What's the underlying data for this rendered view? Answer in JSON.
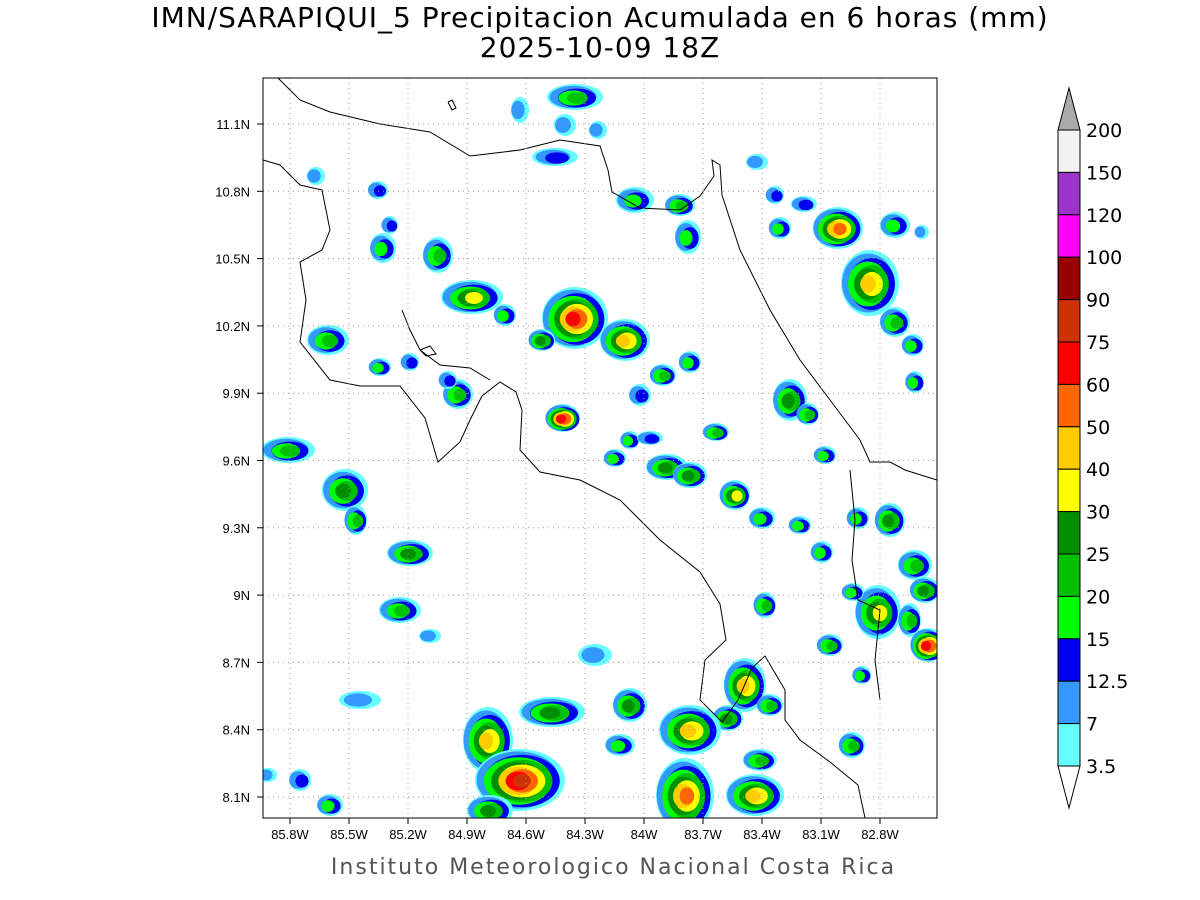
{
  "title": "IMN/SARAPIQUI_5 Precipitacion Acumulada en 6 horas (mm)",
  "subtitle": "2025-10-09 18Z",
  "credit": "Instituto Meteorologico Nacional Costa Rica",
  "map": {
    "lat_ticks": [
      "11.1N",
      "10.8N",
      "10.5N",
      "10.2N",
      "9.9N",
      "9.6N",
      "9.3N",
      "9N",
      "8.7N",
      "8.4N",
      "8.1N"
    ],
    "lon_ticks": [
      "85.8W",
      "85.5W",
      "85.2W",
      "84.9W",
      "84.6W",
      "84.3W",
      "84W",
      "83.7W",
      "83.4W",
      "83.1W",
      "82.8W"
    ],
    "grid": "dotted",
    "variable": "6-hour accumulated precipitation (mm)"
  },
  "colorbar": {
    "labels": [
      "3.5",
      "7",
      "12.5",
      "15",
      "20",
      "25",
      "30",
      "40",
      "50",
      "60",
      "75",
      "90",
      "100",
      "120",
      "150",
      "200"
    ],
    "colors": [
      "#ffffff",
      "#66ffff",
      "#3399ff",
      "#0000ee",
      "#00ff00",
      "#00c000",
      "#008f00",
      "#ffff00",
      "#ffcc00",
      "#ff6600",
      "#ff0000",
      "#cc3300",
      "#990000",
      "#ff00ff",
      "#9933cc",
      "#f2f2f2",
      "#aaaaaa"
    ]
  }
}
